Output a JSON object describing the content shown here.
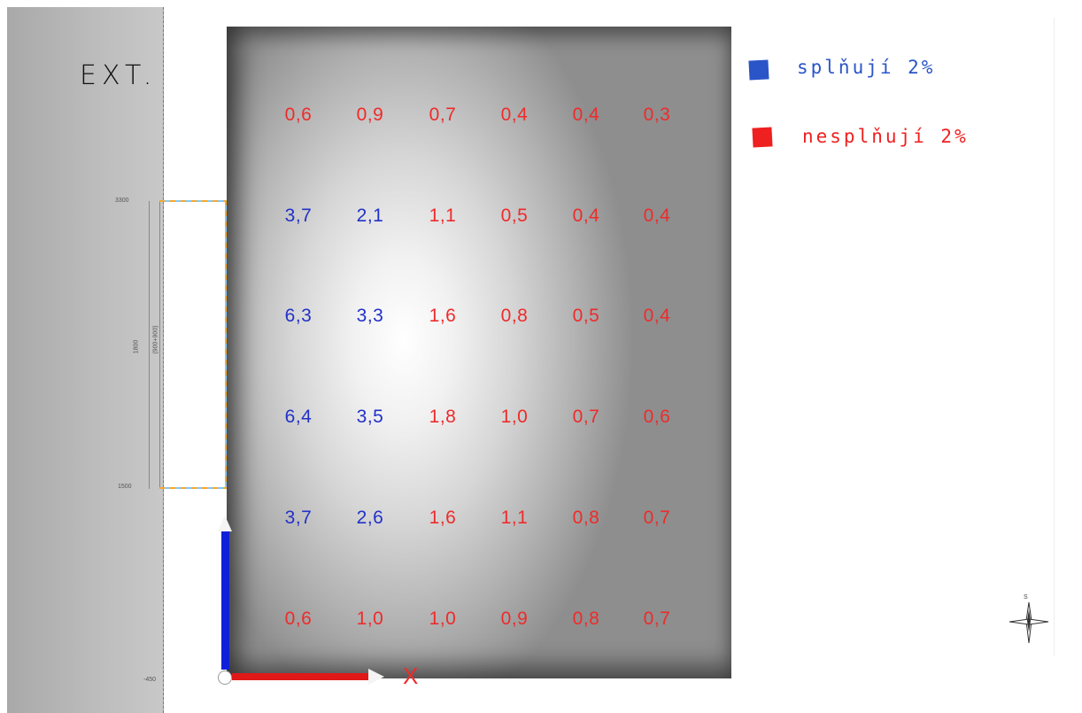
{
  "ext_label": "EXT.",
  "axis_label_x": "X",
  "legend": {
    "ok_label": "splňují  2%",
    "bad_label": "nesplňují  2%",
    "ok_color": "#2a55c8",
    "bad_color": "#ee2020"
  },
  "dimensions": {
    "top_mark": "3300",
    "bottom_mark": "1500",
    "bottom_axis_mark": "-450",
    "span_label": "1800",
    "span_label_2": "(900+900)",
    "compass_letter": "S"
  },
  "grid": {
    "rows": [
      [
        {
          "v": "0,6",
          "ok": false
        },
        {
          "v": "0,9",
          "ok": false
        },
        {
          "v": "0,7",
          "ok": false
        },
        {
          "v": "0,4",
          "ok": false
        },
        {
          "v": "0,4",
          "ok": false
        },
        {
          "v": "0,3",
          "ok": false
        }
      ],
      [
        {
          "v": "3,7",
          "ok": true
        },
        {
          "v": "2,1",
          "ok": true
        },
        {
          "v": "1,1",
          "ok": false
        },
        {
          "v": "0,5",
          "ok": false
        },
        {
          "v": "0,4",
          "ok": false
        },
        {
          "v": "0,4",
          "ok": false
        }
      ],
      [
        {
          "v": "6,3",
          "ok": true
        },
        {
          "v": "3,3",
          "ok": true
        },
        {
          "v": "1,6",
          "ok": false
        },
        {
          "v": "0,8",
          "ok": false
        },
        {
          "v": "0,5",
          "ok": false
        },
        {
          "v": "0,4",
          "ok": false
        }
      ],
      [
        {
          "v": "6,4",
          "ok": true
        },
        {
          "v": "3,5",
          "ok": true
        },
        {
          "v": "1,8",
          "ok": false
        },
        {
          "v": "1,0",
          "ok": false
        },
        {
          "v": "0,7",
          "ok": false
        },
        {
          "v": "0,6",
          "ok": false
        }
      ],
      [
        {
          "v": "3,7",
          "ok": true
        },
        {
          "v": "2,6",
          "ok": true
        },
        {
          "v": "1,6",
          "ok": false
        },
        {
          "v": "1,1",
          "ok": false
        },
        {
          "v": "0,8",
          "ok": false
        },
        {
          "v": "0,7",
          "ok": false
        }
      ],
      [
        {
          "v": "0,6",
          "ok": false
        },
        {
          "v": "1,0",
          "ok": false
        },
        {
          "v": "1,0",
          "ok": false
        },
        {
          "v": "0,9",
          "ok": false
        },
        {
          "v": "0,8",
          "ok": false
        },
        {
          "v": "0,7",
          "ok": false
        }
      ]
    ]
  }
}
